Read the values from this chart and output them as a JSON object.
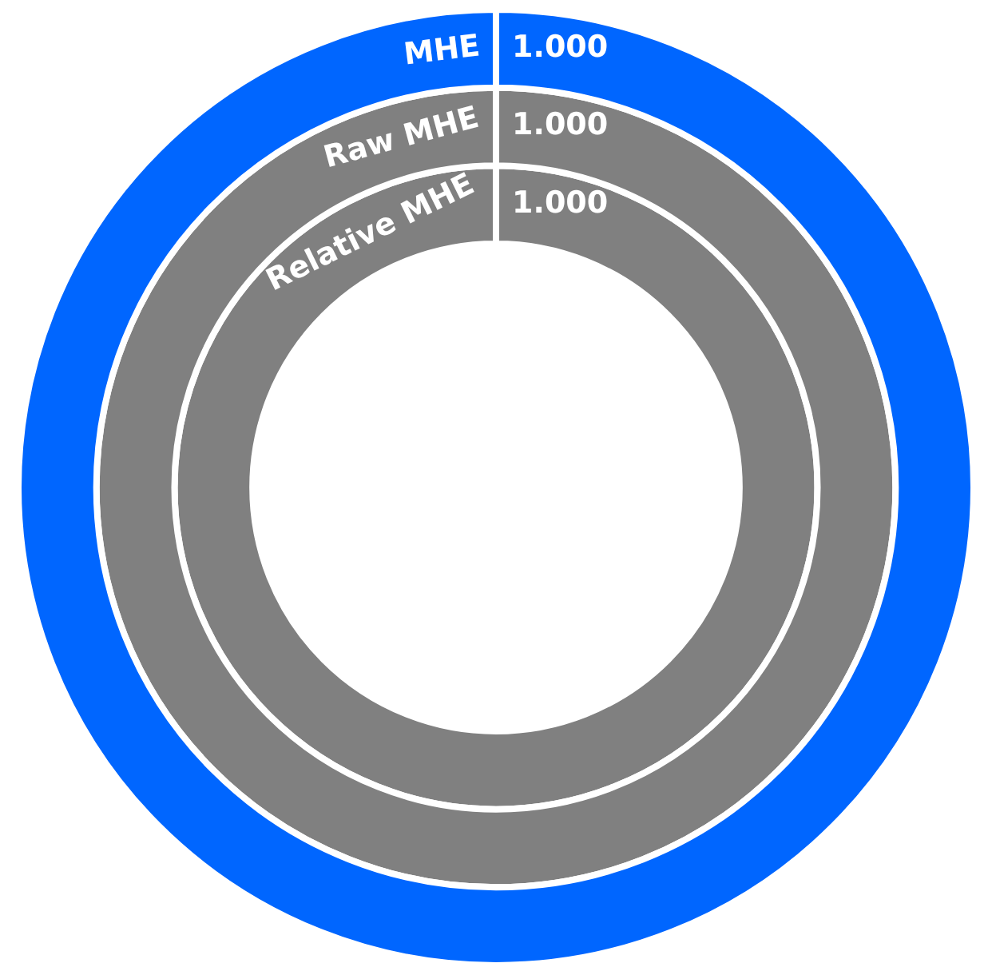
{
  "chart_data": {
    "type": "other",
    "categories": [
      "MHE",
      "Raw MHE",
      "Relative MHE"
    ],
    "values": [
      1,
      1,
      1
    ],
    "value_labels": [
      "1.000",
      "1.000",
      "1.000"
    ],
    "colors": [
      "#0066ff",
      "#808080",
      "#808080"
    ]
  }
}
